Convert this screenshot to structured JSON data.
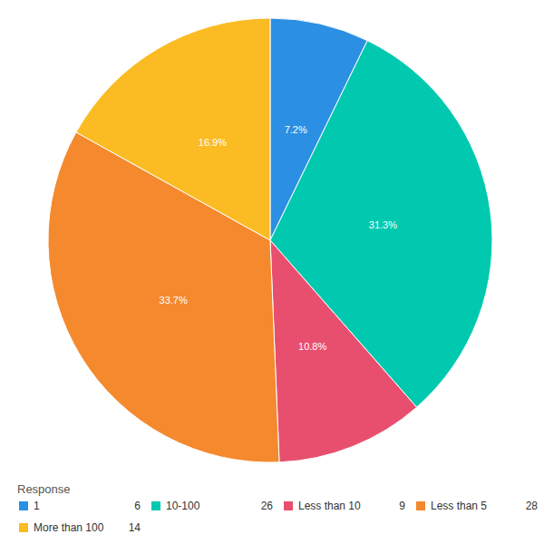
{
  "chart_data": {
    "type": "pie",
    "legend_title": "Response",
    "categories": [
      "1",
      "10-100",
      "Less than 10",
      "Less than 5",
      "More than 100"
    ],
    "values": [
      7.2,
      31.3,
      10.8,
      33.7,
      16.9
    ],
    "value_labels": [
      "7.2%",
      "31.3%",
      "10.8%",
      "33.7%",
      "16.9%"
    ],
    "counts": [
      6,
      26,
      9,
      28,
      14
    ],
    "colors": [
      "#2b8fe3",
      "#00c9b0",
      "#e84f6e",
      "#f5892e",
      "#fbbb22"
    ],
    "data_labels": true,
    "legend": "bottom"
  }
}
